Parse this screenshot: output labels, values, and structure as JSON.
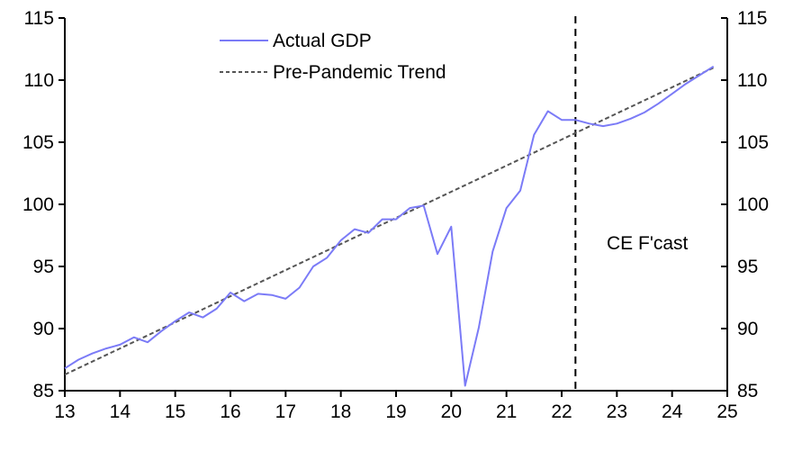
{
  "chart_data": {
    "type": "line",
    "title": "",
    "xlabel": "",
    "ylabel": "",
    "xlim": [
      13,
      25
    ],
    "ylim": [
      85,
      115
    ],
    "x_ticks": [
      "13",
      "14",
      "15",
      "16",
      "17",
      "18",
      "19",
      "20",
      "21",
      "22",
      "23",
      "24",
      "25"
    ],
    "y_ticks_left": [
      "85",
      "90",
      "95",
      "100",
      "105",
      "110",
      "115"
    ],
    "y_ticks_right": [
      "85",
      "90",
      "95",
      "100",
      "105",
      "110",
      "115"
    ],
    "grid": false,
    "legend_position": "top-center",
    "series": [
      {
        "name": "Actual GDP",
        "color": "#7b7bf7",
        "style": "solid",
        "x": [
          13.0,
          13.25,
          13.5,
          13.75,
          14.0,
          14.25,
          14.5,
          14.75,
          15.0,
          15.25,
          15.5,
          15.75,
          16.0,
          16.25,
          16.5,
          16.75,
          17.0,
          17.25,
          17.5,
          17.75,
          18.0,
          18.25,
          18.5,
          18.75,
          19.0,
          19.25,
          19.5,
          19.75,
          20.0,
          20.25,
          20.5,
          20.75,
          21.0,
          21.25,
          21.5,
          21.75,
          22.0,
          22.25,
          22.5,
          22.75,
          23.0,
          23.25,
          23.5,
          23.75,
          24.0,
          24.25,
          24.5,
          24.75
        ],
        "y": [
          86.8,
          87.5,
          88.0,
          88.4,
          88.7,
          89.3,
          88.9,
          89.8,
          90.6,
          91.3,
          90.9,
          91.6,
          92.9,
          92.2,
          92.8,
          92.7,
          92.4,
          93.3,
          95.0,
          95.7,
          97.1,
          98.0,
          97.7,
          98.8,
          98.8,
          99.7,
          99.9,
          96.0,
          98.2,
          85.4,
          90.1,
          96.2,
          99.7,
          101.1,
          105.6,
          107.5,
          106.8,
          106.8,
          106.5,
          106.3,
          106.5,
          106.9,
          107.4,
          108.1,
          108.9,
          109.7,
          110.4,
          111.1
        ]
      },
      {
        "name": "Pre-Pandemic Trend",
        "color": "#555555",
        "style": "dashed",
        "x": [
          13.0,
          24.75
        ],
        "y": [
          86.3,
          111.0
        ]
      }
    ],
    "annotations": [
      {
        "text": "CE F'cast"
      }
    ],
    "forecast_start_x": 22.25
  }
}
